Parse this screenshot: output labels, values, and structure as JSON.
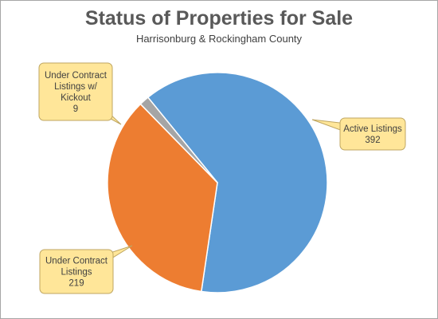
{
  "chart_data": {
    "type": "pie",
    "title": "Status of Properties for Sale",
    "subtitle": "Harrisonburg & Rockingham County",
    "slices": [
      {
        "label": "Active Listings",
        "value": 392,
        "color": "#5b9bd5"
      },
      {
        "label": "Under Contract Listings",
        "value": 219,
        "color": "#ed7d31"
      },
      {
        "label": "Under Contract Listings w/ Kickout",
        "value": 9,
        "color": "#a5a5a5"
      }
    ],
    "data_labels": [
      {
        "lines": [
          "Active Listings",
          "392"
        ]
      },
      {
        "lines": [
          "Under Contract",
          "Listings",
          "219"
        ]
      },
      {
        "lines": [
          "Under Contract",
          "Listings w/",
          "Kickout",
          "9"
        ]
      }
    ],
    "legend": "none",
    "label_style": "callouts"
  }
}
